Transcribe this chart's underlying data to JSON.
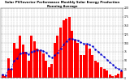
{
  "title": "Solar PV/Inverter Performance Monthly Solar Energy Production Running Average",
  "title_fontsize": 2.8,
  "bar_values": [
    10,
    5,
    55,
    25,
    100,
    85,
    120,
    95,
    75,
    50,
    120,
    105,
    85,
    80,
    70,
    50,
    30,
    40,
    100,
    120,
    145,
    165,
    170,
    175,
    135,
    110,
    100,
    65,
    65,
    95,
    85,
    65,
    50,
    45,
    30,
    25,
    20,
    10,
    5,
    8,
    12,
    18
  ],
  "running_avg": [
    10,
    8,
    25,
    25,
    50,
    55,
    70,
    72,
    72,
    68,
    75,
    78,
    80,
    80,
    78,
    72,
    62,
    58,
    65,
    72,
    85,
    95,
    105,
    112,
    112,
    110,
    108,
    102,
    98,
    98,
    95,
    90,
    82,
    75,
    68,
    60,
    52,
    45,
    38,
    30,
    25,
    22
  ],
  "bar_color": "#ff0000",
  "avg_color": "#0000cc",
  "background_color": "#ffffff",
  "grid_color": "#999999",
  "ylim": [
    0,
    200
  ],
  "yticks": [
    0,
    25,
    50,
    75,
    100,
    125,
    150,
    175,
    200
  ],
  "ylabel_fontsize": 2.2,
  "xlabel_fontsize": 2.0,
  "figure_width": 1.6,
  "figure_height": 1.0,
  "dpi": 100
}
